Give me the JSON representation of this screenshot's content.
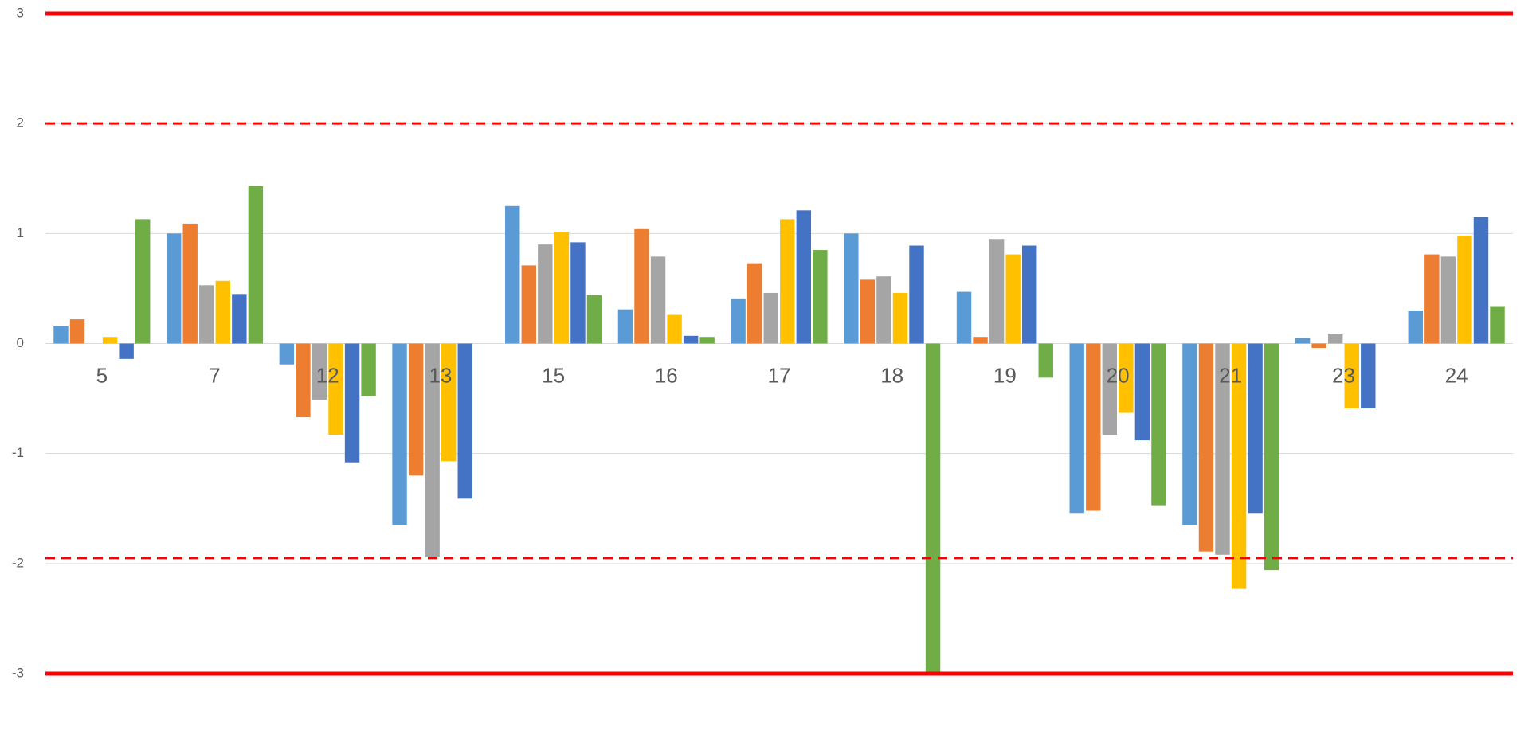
{
  "chart_data": {
    "type": "bar",
    "categories": [
      "5",
      "7",
      "12",
      "13",
      "15",
      "16",
      "17",
      "18",
      "19",
      "20",
      "21",
      "23",
      "24"
    ],
    "series": [
      {
        "color": "#5b9bd5",
        "values": [
          0.16,
          1.0,
          -0.19,
          -1.65,
          1.25,
          0.31,
          0.41,
          1.0,
          0.47,
          -1.54,
          -1.65,
          0.05,
          0.3
        ]
      },
      {
        "color": "#ed7d31",
        "values": [
          0.22,
          1.09,
          -0.67,
          -1.2,
          0.71,
          1.04,
          0.73,
          0.58,
          0.06,
          -1.52,
          -1.89,
          -0.04,
          0.81
        ]
      },
      {
        "color": "#a5a5a5",
        "values": [
          0,
          0.53,
          -0.51,
          -1.94,
          0.9,
          0.79,
          0.46,
          0.61,
          0.95,
          -0.83,
          -1.92,
          0.09,
          0.79
        ]
      },
      {
        "color": "#ffc000",
        "values": [
          0.06,
          0.57,
          -0.83,
          -1.07,
          1.01,
          0.26,
          1.13,
          0.46,
          0.81,
          -0.63,
          -2.23,
          -0.59,
          0.98
        ]
      },
      {
        "color": "#4472c4",
        "values": [
          -0.14,
          0.45,
          -1.08,
          -1.41,
          0.92,
          0.07,
          1.21,
          0.89,
          0.89,
          -0.88,
          -1.54,
          -0.59,
          1.15
        ]
      },
      {
        "color": "#70ad47",
        "values": [
          1.13,
          1.43,
          -0.48,
          0,
          0.44,
          0.06,
          0.85,
          -3.0,
          -0.31,
          -1.47,
          -2.06,
          0,
          0.34
        ]
      }
    ],
    "ylim": [
      -3,
      3
    ],
    "yticks": [
      -3,
      -2,
      -1,
      0,
      1,
      2,
      3
    ],
    "grid": true,
    "reference_lines": [
      {
        "value": 3,
        "style": "solid",
        "color": "#ff0000"
      },
      {
        "value": 2,
        "style": "dashed",
        "color": "#ff0000"
      },
      {
        "value": -1.95,
        "style": "dashed",
        "color": "#ff0000"
      },
      {
        "value": -3,
        "style": "solid",
        "color": "#ff0000"
      }
    ]
  }
}
